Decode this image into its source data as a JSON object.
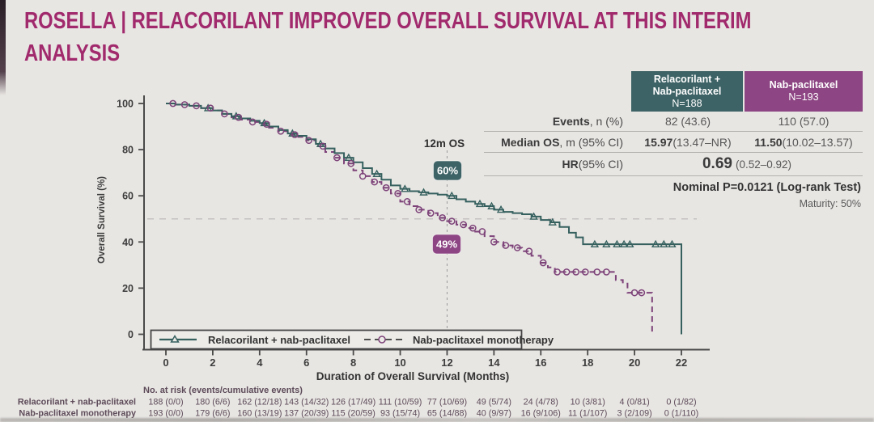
{
  "title": {
    "line1": "ROSELLA | RELACORILANT IMPROVED OVERALL SURVIVAL AT THIS INTERIM",
    "line2": "ANALYSIS"
  },
  "colors": {
    "title": "#a12a6d",
    "teal": "#3e6366",
    "teal_curve": "#35605e",
    "purple": "#8d4683",
    "purple_curve": "#7d4379",
    "background": "#e8e6e3",
    "axis_text": "#3d3d3d",
    "at_risk_text": "#5d4b59"
  },
  "stats_table": {
    "col1": {
      "header_line1": "Relacorilant +",
      "header_line2": "Nab-paclitaxel",
      "n": "N=188"
    },
    "col2": {
      "header_line1": "Nab-paclitaxel",
      "n": "N=193"
    },
    "rows": {
      "events": {
        "label_bold": "Events",
        "label_rest": ", n (%)",
        "v1": "82 (43.6)",
        "v2": "110 (57.0)"
      },
      "median": {
        "label_bold": "Median OS",
        "label_rest": ", m (95% CI)",
        "v1_bold": "15.97",
        "v1_rest": " (13.47–NR)",
        "v2_bold": "11.50",
        "v2_rest": " (10.02–13.57)"
      },
      "hr": {
        "label_bold": "HR",
        "label_rest": " (95% CI)",
        "v_bold": "0.69",
        "v_rest": "(0.52–0.92)"
      }
    },
    "pvalue": "Nominal P=0.0121 (Log-rank Test)",
    "maturity": "Maturity: 50%"
  },
  "chart_data": {
    "type": "line",
    "subtype": "kaplan-meier-step",
    "title": "",
    "xlabel": "Duration of Overall Survival (Months)",
    "ylabel": "Overall Survival (%)",
    "xlim": [
      0,
      22
    ],
    "ylim": [
      0,
      100
    ],
    "xticks": [
      0,
      2,
      4,
      6,
      8,
      10,
      12,
      14,
      16,
      18,
      20,
      22
    ],
    "yticks": [
      0,
      20,
      40,
      60,
      80,
      100
    ],
    "reference_line_pct": 50,
    "timepoint": {
      "label": "12m OS",
      "month": 12,
      "series1_value": "60%",
      "series2_value": "49%"
    },
    "legend_position": "bottom-inside",
    "series": [
      {
        "name": "Relacorilant + nab-paclitaxel",
        "color": "#35605e",
        "style": "solid",
        "marker": "triangle",
        "points": [
          [
            0,
            100
          ],
          [
            0.4,
            99.5
          ],
          [
            1.0,
            99
          ],
          [
            1.5,
            98
          ],
          [
            2.0,
            97
          ],
          [
            2.4,
            95.5
          ],
          [
            2.8,
            94.5
          ],
          [
            3.2,
            93.5
          ],
          [
            3.6,
            92.5
          ],
          [
            4.0,
            91.5
          ],
          [
            4.4,
            90
          ],
          [
            4.8,
            88.5
          ],
          [
            5.2,
            87
          ],
          [
            5.6,
            86
          ],
          [
            6.0,
            84.5
          ],
          [
            6.4,
            82.5
          ],
          [
            6.8,
            80.5
          ],
          [
            7.2,
            78.5
          ],
          [
            7.6,
            76.5
          ],
          [
            8.0,
            74.5
          ],
          [
            8.4,
            72
          ],
          [
            8.8,
            69.5
          ],
          [
            9.2,
            67
          ],
          [
            9.6,
            64.5
          ],
          [
            10.0,
            63
          ],
          [
            10.4,
            62
          ],
          [
            10.8,
            61.5
          ],
          [
            11.2,
            61
          ],
          [
            11.6,
            60.5
          ],
          [
            12.0,
            60
          ],
          [
            12.4,
            58.5
          ],
          [
            12.8,
            57.5
          ],
          [
            13.2,
            56.5
          ],
          [
            13.6,
            55.5
          ],
          [
            14.0,
            54
          ],
          [
            14.4,
            53
          ],
          [
            14.8,
            52.5
          ],
          [
            15.2,
            52
          ],
          [
            15.6,
            51
          ],
          [
            16.0,
            49.5
          ],
          [
            16.4,
            48.5
          ],
          [
            16.8,
            46.5
          ],
          [
            17.2,
            44
          ],
          [
            17.5,
            42
          ],
          [
            17.8,
            39
          ],
          [
            22,
            38.5
          ],
          [
            22,
            0
          ]
        ],
        "censor_months": [
          1.8,
          3.0,
          4.2,
          5.4,
          6.6,
          7.8,
          9.0,
          10.2,
          11.0,
          12.2,
          13.4,
          13.9,
          14.3,
          15.7,
          16.5,
          18.3,
          18.8,
          19.25,
          19.55,
          19.8,
          20.9,
          21.25,
          21.6
        ]
      },
      {
        "name": "Nab-paclitaxel monotherapy",
        "color": "#7d4379",
        "style": "dashed",
        "marker": "circle",
        "points": [
          [
            0,
            100
          ],
          [
            0.4,
            99.5
          ],
          [
            1.0,
            99
          ],
          [
            1.5,
            98
          ],
          [
            2.0,
            97
          ],
          [
            2.4,
            95.5
          ],
          [
            2.8,
            94
          ],
          [
            3.2,
            93
          ],
          [
            3.6,
            92
          ],
          [
            4.0,
            91
          ],
          [
            4.4,
            89.5
          ],
          [
            4.8,
            88
          ],
          [
            5.2,
            86.5
          ],
          [
            5.6,
            85.5
          ],
          [
            6.0,
            84
          ],
          [
            6.4,
            81.5
          ],
          [
            6.8,
            79
          ],
          [
            7.2,
            76.5
          ],
          [
            7.6,
            74
          ],
          [
            8.0,
            71
          ],
          [
            8.4,
            68.5
          ],
          [
            8.8,
            66
          ],
          [
            9.2,
            63.5
          ],
          [
            9.6,
            61
          ],
          [
            10.0,
            57.5
          ],
          [
            10.4,
            55.5
          ],
          [
            10.8,
            54
          ],
          [
            11.2,
            52.5
          ],
          [
            11.6,
            50.5
          ],
          [
            12.0,
            49
          ],
          [
            12.4,
            47.5
          ],
          [
            12.8,
            46
          ],
          [
            13.2,
            44.5
          ],
          [
            13.6,
            42.5
          ],
          [
            14.0,
            40
          ],
          [
            14.4,
            38.5
          ],
          [
            14.8,
            37.5
          ],
          [
            15.2,
            36
          ],
          [
            15.6,
            34
          ],
          [
            16.0,
            31
          ],
          [
            16.3,
            29
          ],
          [
            16.6,
            27
          ],
          [
            19.0,
            27
          ],
          [
            19.2,
            23.5
          ],
          [
            19.5,
            22
          ],
          [
            19.7,
            18
          ],
          [
            20.75,
            18
          ],
          [
            20.75,
            0
          ]
        ],
        "censor_months": [
          0.3,
          0.8,
          1.3,
          1.9,
          2.5,
          3.1,
          3.7,
          4.3,
          4.9,
          5.5,
          6.1,
          6.7,
          7.3,
          7.9,
          8.4,
          8.9,
          9.4,
          9.9,
          10.3,
          10.8,
          11.3,
          11.8,
          12.2,
          12.7,
          13.1,
          13.5,
          14.0,
          14.5,
          15.0,
          15.5,
          16.1,
          16.7,
          17.1,
          17.5,
          17.9,
          18.4,
          18.8,
          20.0,
          20.3
        ]
      }
    ]
  },
  "at_risk": {
    "header": "No. at risk (events/cumulative events)",
    "months": [
      0,
      2,
      4,
      6,
      8,
      10,
      12,
      14,
      16,
      18,
      20,
      22
    ],
    "rows": [
      {
        "label": "Relacorilant + nab-paclitaxel",
        "values": [
          "188 (0/0)",
          "180 (6/6)",
          "162 (12/18)",
          "143 (14/32)",
          "126 (17/49)",
          "111 (10/59)",
          "77 (10/69)",
          "49 (5/74)",
          "24 (4/78)",
          "10 (3/81)",
          "4 (0/81)",
          "0 (1/82)"
        ]
      },
      {
        "label": "Nab-paclitaxel monotherapy",
        "values": [
          "193 (0/0)",
          "179 (6/6)",
          "160 (13/19)",
          "137 (20/39)",
          "115 (20/59)",
          "93 (15/74)",
          "65 (14/88)",
          "40 (9/97)",
          "16 (9/106)",
          "11 (1/107)",
          "3 (2/109)",
          "0 (1/110)"
        ]
      }
    ]
  }
}
